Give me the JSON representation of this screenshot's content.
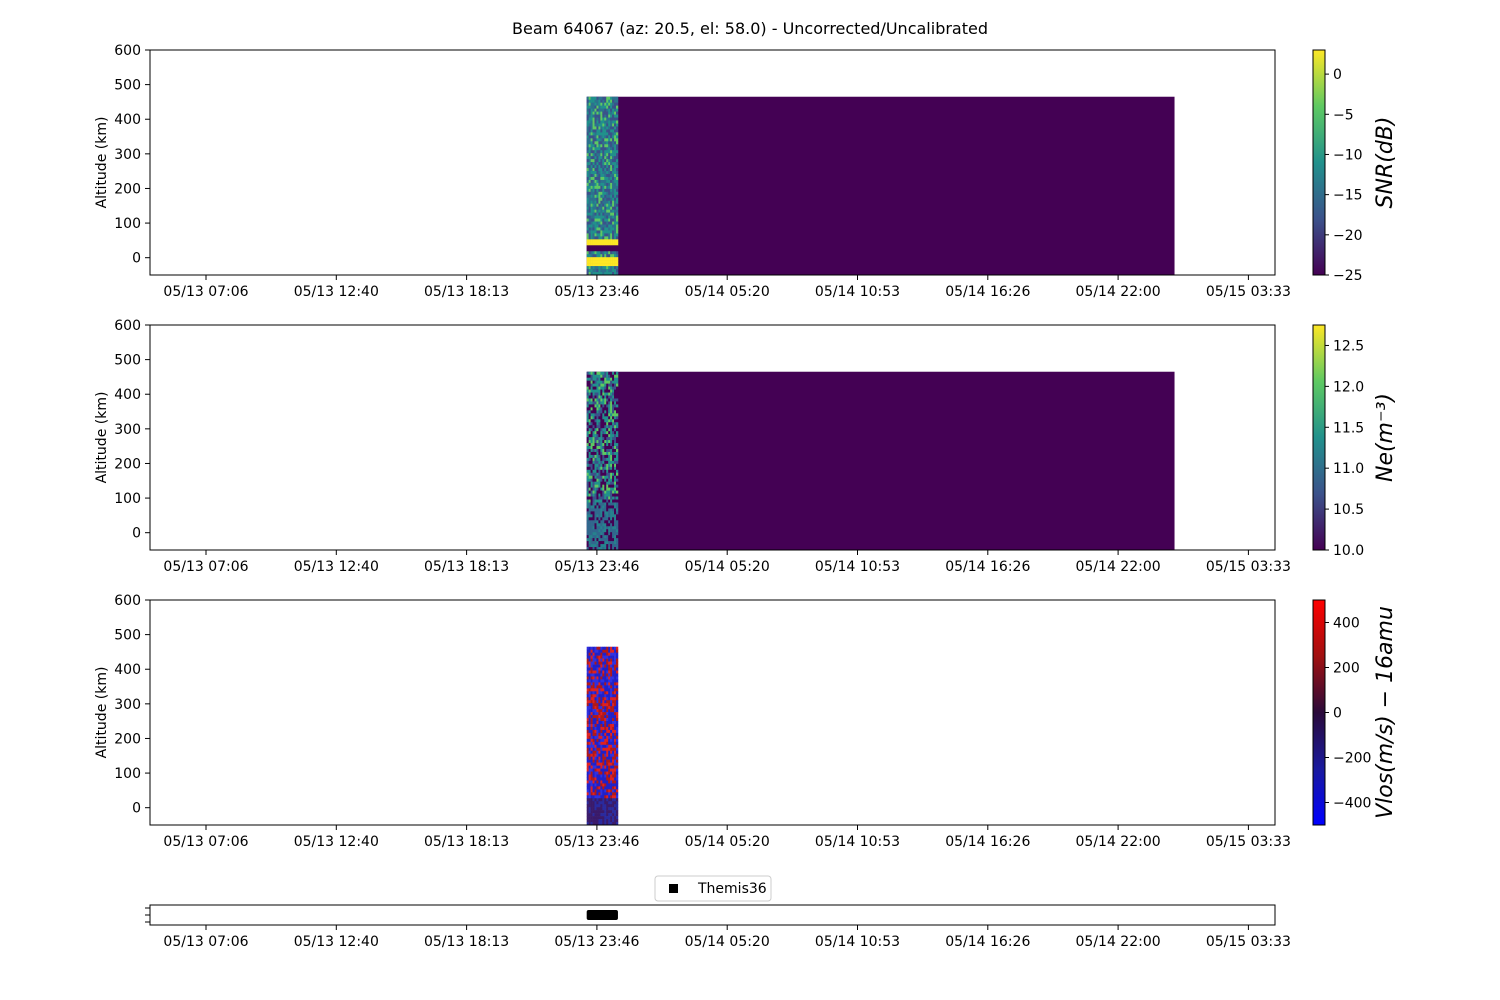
{
  "figure": {
    "title": "Beam 64067 (az: 20.5, el: 58.0) - Uncorrected/Uncalibrated",
    "x_tick_labels": [
      "05/13 07:06",
      "05/13 12:40",
      "05/13 18:13",
      "05/13 23:46",
      "05/14 05:20",
      "05/14 10:53",
      "05/14 16:26",
      "05/14 22:00",
      "05/15 03:33"
    ]
  },
  "chart_data": [
    {
      "type": "heatmap",
      "name": "snr",
      "ylabel": "Altitude (km)",
      "ylim": [
        -50,
        600
      ],
      "y_ticks": [
        0,
        100,
        200,
        300,
        400,
        500,
        600
      ],
      "x_ticks": [
        "05/13 07:06",
        "05/13 12:40",
        "05/13 18:13",
        "05/13 23:46",
        "05/14 05:20",
        "05/14 10:53",
        "05/14 16:26",
        "05/14 22:00",
        "05/15 03:33"
      ],
      "data_extent": {
        "time_start": "05/13 23:20",
        "time_end": "05/15 00:24",
        "alt_min": -50,
        "alt_max": 465
      },
      "measured_interval": {
        "time_start": "05/13 23:20",
        "time_end": "05/14 00:40"
      },
      "fill_value": -25,
      "colormap": "viridis",
      "colorbar": {
        "label": "SNR(dB)",
        "vmin": -25,
        "vmax": 3,
        "ticks": [
          0,
          -5,
          -10,
          -15,
          -20,
          -25
        ]
      }
    },
    {
      "type": "heatmap",
      "name": "ne",
      "ylabel": "Altitude (km)",
      "ylim": [
        -50,
        600
      ],
      "y_ticks": [
        0,
        100,
        200,
        300,
        400,
        500,
        600
      ],
      "x_ticks": [
        "05/13 07:06",
        "05/13 12:40",
        "05/13 18:13",
        "05/13 23:46",
        "05/14 05:20",
        "05/14 10:53",
        "05/14 16:26",
        "05/14 22:00",
        "05/15 03:33"
      ],
      "data_extent": {
        "time_start": "05/13 23:20",
        "time_end": "05/15 00:24",
        "alt_min": -50,
        "alt_max": 465
      },
      "measured_interval": {
        "time_start": "05/13 23:20",
        "time_end": "05/14 00:40"
      },
      "fill_value": 10.0,
      "colormap": "viridis",
      "colorbar": {
        "label": "Ne(m⁻³)",
        "vmin": 10.0,
        "vmax": 12.75,
        "ticks": [
          10.0,
          10.5,
          11.0,
          11.5,
          12.0,
          12.5
        ]
      }
    },
    {
      "type": "heatmap",
      "name": "vlos",
      "ylabel": "Altitude (km)",
      "ylim": [
        -50,
        600
      ],
      "y_ticks": [
        0,
        100,
        200,
        300,
        400,
        500,
        600
      ],
      "x_ticks": [
        "05/13 07:06",
        "05/13 12:40",
        "05/13 18:13",
        "05/13 23:46",
        "05/14 05:20",
        "05/14 10:53",
        "05/14 16:26",
        "05/14 22:00",
        "05/15 03:33"
      ],
      "data_extent": {
        "time_start": "05/13 23:20",
        "time_end": "05/14 00:40",
        "alt_min": -50,
        "alt_max": 465
      },
      "colormap": "seismic",
      "colorbar": {
        "label": "Vlos(m/s) − 16amu",
        "vmin": -500,
        "vmax": 500,
        "ticks": [
          400,
          200,
          0,
          -200,
          -400
        ]
      }
    },
    {
      "type": "bar",
      "name": "conjunction",
      "x_ticks": [
        "05/13 07:06",
        "05/13 12:40",
        "05/13 18:13",
        "05/13 23:46",
        "05/14 05:20",
        "05/14 10:53",
        "05/14 16:26",
        "05/14 22:00",
        "05/15 03:33"
      ],
      "series": [
        {
          "name": "Themis36",
          "time_start": "05/13 23:20",
          "time_end": "05/14 00:40",
          "color": "#000000"
        }
      ],
      "legend": "top-center"
    }
  ]
}
